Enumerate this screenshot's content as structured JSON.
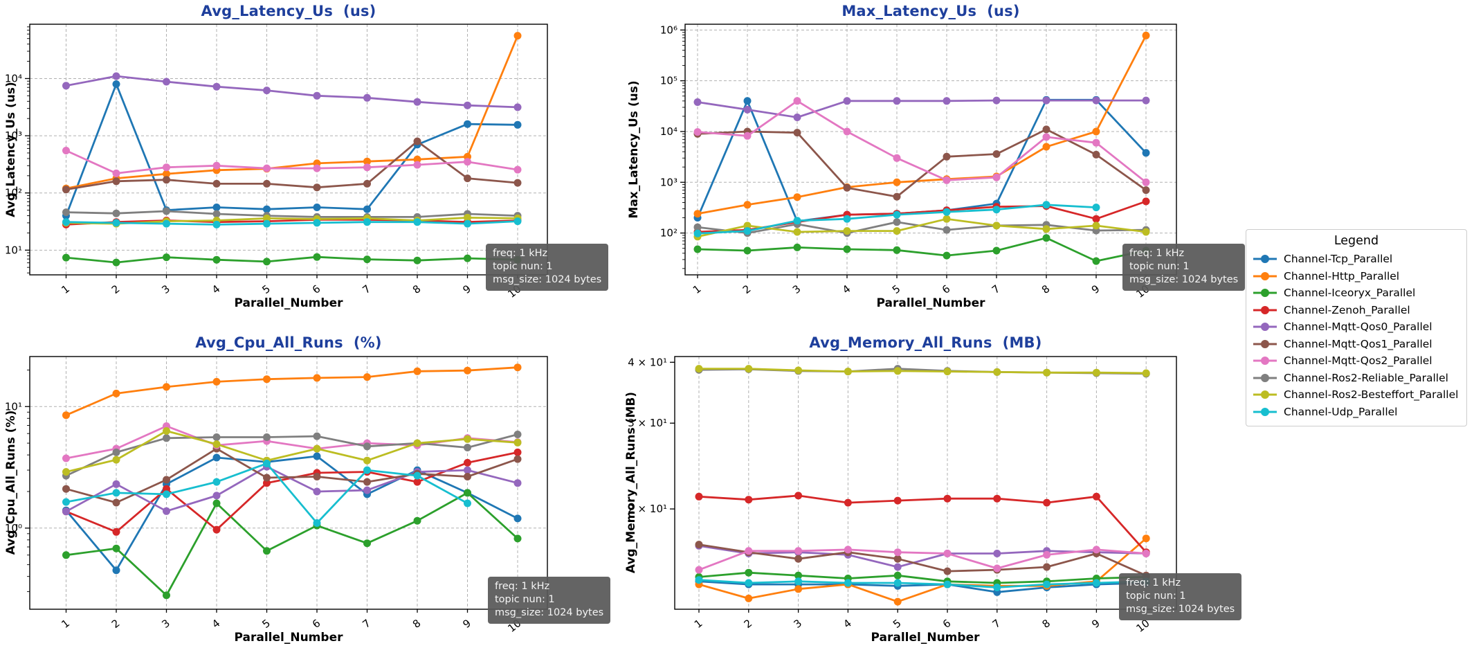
{
  "figure": {
    "background": "#ffffff",
    "title_color": "#1e3f9c",
    "grid_color": "#b0b0b0"
  },
  "annotation": {
    "lines": [
      "freq: 1 kHz",
      "topic nun: 1",
      "msg_size: 1024 bytes"
    ]
  },
  "legend": {
    "title": "Legend",
    "position": "right",
    "entries": [
      {
        "label": "Channel-Tcp_Parallel",
        "color": "#1f77b4"
      },
      {
        "label": "Channel-Http_Parallel",
        "color": "#ff7f0e"
      },
      {
        "label": "Channel-Iceoryx_Parallel",
        "color": "#2ca02c"
      },
      {
        "label": "Channel-Zenoh_Parallel",
        "color": "#d62728"
      },
      {
        "label": "Channel-Mqtt-Qos0_Parallel",
        "color": "#9467bd"
      },
      {
        "label": "Channel-Mqtt-Qos1_Parallel",
        "color": "#8c564b"
      },
      {
        "label": "Channel-Mqtt-Qos2_Parallel",
        "color": "#e377c2"
      },
      {
        "label": "Channel-Ros2-Reliable_Parallel",
        "color": "#7f7f7f"
      },
      {
        "label": "Channel-Ros2-Besteffort_Parallel",
        "color": "#bcbd22"
      },
      {
        "label": "Channel-Udp_Parallel",
        "color": "#17becf"
      }
    ]
  },
  "chart_data": [
    {
      "type": "line",
      "title": "Avg_Latency_Us  (us)",
      "xlabel": "Parallel_Number",
      "ylabel": "Avg_Latency_Us (us)",
      "yscale": "log",
      "grid": "both",
      "ylim": [
        3.7,
        89000
      ],
      "yticks": [
        {
          "label": "10⁴",
          "value": 10000
        },
        {
          "label": "10³",
          "value": 1000
        },
        {
          "label": "10²",
          "value": 100
        },
        {
          "label": "10¹",
          "value": 10
        }
      ],
      "x": [
        1,
        2,
        3,
        4,
        5,
        6,
        7,
        8,
        9,
        10
      ],
      "series": [
        {
          "name": "Channel-Tcp_Parallel",
          "color": "#1f77b4",
          "values": [
            40,
            8000,
            50,
            56,
            52,
            56,
            52,
            700,
            1600,
            1550
          ]
        },
        {
          "name": "Channel-Http_Parallel",
          "color": "#ff7f0e",
          "values": [
            120,
            180,
            215,
            250,
            265,
            330,
            355,
            385,
            430,
            56000
          ]
        },
        {
          "name": "Channel-Iceoryx_Parallel",
          "color": "#2ca02c",
          "values": [
            7.4,
            6.1,
            7.5,
            6.8,
            6.3,
            7.6,
            6.9,
            6.6,
            7.2,
            6.8
          ]
        },
        {
          "name": "Channel-Zenoh_Parallel",
          "color": "#d62728",
          "values": [
            28,
            31,
            33,
            31,
            32,
            34,
            34,
            33,
            31,
            33
          ]
        },
        {
          "name": "Channel-Mqtt-Qos0_Parallel",
          "color": "#9467bd",
          "values": [
            7500,
            11000,
            8800,
            7200,
            6200,
            5000,
            4600,
            3900,
            3400,
            3150
          ]
        },
        {
          "name": "Channel-Mqtt-Qos1_Parallel",
          "color": "#8c564b",
          "values": [
            115,
            160,
            170,
            145,
            145,
            125,
            145,
            800,
            180,
            150
          ]
        },
        {
          "name": "Channel-Mqtt-Qos2_Parallel",
          "color": "#e377c2",
          "values": [
            550,
            220,
            280,
            300,
            270,
            270,
            280,
            310,
            350,
            255
          ]
        },
        {
          "name": "Channel-Ros2-Reliable_Parallel",
          "color": "#7f7f7f",
          "values": [
            46,
            44,
            48,
            43,
            40,
            38,
            38,
            38,
            43,
            40
          ]
        },
        {
          "name": "Channel-Ros2-Besteffort_Parallel",
          "color": "#bcbd22",
          "values": [
            30,
            29,
            32,
            33,
            36,
            35,
            36,
            33,
            37,
            36
          ]
        },
        {
          "name": "Channel-Udp_Parallel",
          "color": "#17becf",
          "values": [
            31,
            30,
            29,
            28,
            29,
            30,
            31,
            31,
            29,
            32
          ]
        }
      ]
    },
    {
      "type": "line",
      "title": "Max_Latency_Us  (us)",
      "xlabel": "Parallel_Number",
      "ylabel": "Max_Latency_Us (us)",
      "yscale": "log",
      "grid": "both",
      "ylim": [
        15,
        1300000
      ],
      "yticks": [
        {
          "label": "10⁶",
          "value": 1000000
        },
        {
          "label": "10⁵",
          "value": 100000
        },
        {
          "label": "10⁴",
          "value": 10000
        },
        {
          "label": "10³",
          "value": 1000
        },
        {
          "label": "10²",
          "value": 100
        }
      ],
      "x": [
        1,
        2,
        3,
        4,
        5,
        6,
        7,
        8,
        9,
        10
      ],
      "series": [
        {
          "name": "Channel-Tcp_Parallel",
          "color": "#1f77b4",
          "values": [
            200,
            40000,
            170,
            230,
            240,
            280,
            380,
            42000,
            42000,
            3800
          ]
        },
        {
          "name": "Channel-Http_Parallel",
          "color": "#ff7f0e",
          "values": [
            240,
            360,
            510,
            800,
            1000,
            1150,
            1300,
            5000,
            10000,
            780000
          ]
        },
        {
          "name": "Channel-Iceoryx_Parallel",
          "color": "#2ca02c",
          "values": [
            48,
            45,
            52,
            48,
            46,
            36,
            45,
            80,
            28,
            45
          ]
        },
        {
          "name": "Channel-Zenoh_Parallel",
          "color": "#d62728",
          "values": [
            105,
            115,
            165,
            230,
            240,
            280,
            330,
            340,
            190,
            420
          ]
        },
        {
          "name": "Channel-Mqtt-Qos0_Parallel",
          "color": "#9467bd",
          "values": [
            38000,
            27000,
            19000,
            40000,
            40000,
            40000,
            41000,
            41000,
            41000,
            41000
          ]
        },
        {
          "name": "Channel-Mqtt-Qos1_Parallel",
          "color": "#8c564b",
          "values": [
            9000,
            10000,
            9500,
            780,
            520,
            3200,
            3600,
            11000,
            3500,
            700
          ]
        },
        {
          "name": "Channel-Mqtt-Qos2_Parallel",
          "color": "#e377c2",
          "values": [
            9800,
            8200,
            40000,
            10000,
            3000,
            1100,
            1250,
            7800,
            6000,
            1000
          ]
        },
        {
          "name": "Channel-Ros2-Reliable_Parallel",
          "color": "#7f7f7f",
          "values": [
            130,
            100,
            150,
            100,
            165,
            115,
            140,
            145,
            112,
            115
          ]
        },
        {
          "name": "Channel-Ros2-Besteffort_Parallel",
          "color": "#bcbd22",
          "values": [
            85,
            140,
            105,
            110,
            110,
            190,
            140,
            120,
            140,
            105
          ]
        },
        {
          "name": "Channel-Udp_Parallel",
          "color": "#17becf",
          "values": [
            98,
            110,
            175,
            190,
            230,
            260,
            290,
            360,
            320,
            null
          ]
        }
      ]
    },
    {
      "type": "line",
      "title": "Avg_Cpu_All_Runs  (%)",
      "xlabel": "Parallel_Number",
      "ylabel": "Avg_Cpu_All_Runs (%)",
      "yscale": "log",
      "grid": "both",
      "ylim": [
        0.215,
        25.8
      ],
      "yticks": [
        {
          "label": "10¹",
          "value": 10
        },
        {
          "label": "10⁰",
          "value": 1
        }
      ],
      "x": [
        1,
        2,
        3,
        4,
        5,
        6,
        7,
        8,
        9,
        10
      ],
      "series": [
        {
          "name": "Channel-Tcp_Parallel",
          "color": "#1f77b4",
          "values": [
            1.4,
            0.45,
            2.3,
            3.8,
            3.5,
            3.9,
            1.9,
            3.0,
            1.95,
            1.2
          ]
        },
        {
          "name": "Channel-Http_Parallel",
          "color": "#ff7f0e",
          "values": [
            8.5,
            12.8,
            14.5,
            16.0,
            16.8,
            17.2,
            17.5,
            19.5,
            19.8,
            21.0
          ]
        },
        {
          "name": "Channel-Iceoryx_Parallel",
          "color": "#2ca02c",
          "values": [
            0.6,
            0.68,
            0.28,
            1.6,
            0.65,
            1.05,
            0.75,
            1.15,
            1.95,
            0.82
          ]
        },
        {
          "name": "Channel-Zenoh_Parallel",
          "color": "#d62728",
          "values": [
            1.37,
            0.93,
            2.1,
            0.97,
            2.35,
            2.85,
            2.9,
            2.4,
            3.45,
            4.2
          ]
        },
        {
          "name": "Channel-Mqtt-Qos0_Parallel",
          "color": "#9467bd",
          "values": [
            1.37,
            2.3,
            1.38,
            1.85,
            3.2,
            2.0,
            2.05,
            2.9,
            3.0,
            2.35
          ]
        },
        {
          "name": "Channel-Mqtt-Qos1_Parallel",
          "color": "#8c564b",
          "values": [
            2.1,
            1.62,
            2.5,
            4.5,
            2.6,
            2.65,
            2.4,
            2.8,
            2.65,
            3.7
          ]
        },
        {
          "name": "Channel-Mqtt-Qos2_Parallel",
          "color": "#e377c2",
          "values": [
            3.75,
            4.5,
            6.9,
            4.8,
            5.2,
            4.5,
            5.0,
            4.8,
            5.5,
            5.1
          ]
        },
        {
          "name": "Channel-Ros2-Reliable_Parallel",
          "color": "#7f7f7f",
          "values": [
            2.7,
            4.2,
            5.5,
            5.6,
            5.6,
            5.7,
            4.7,
            5.0,
            4.6,
            5.9
          ]
        },
        {
          "name": "Channel-Ros2-Besteffort_Parallel",
          "color": "#bcbd22",
          "values": [
            2.9,
            3.65,
            6.3,
            4.9,
            3.6,
            4.5,
            3.6,
            5.0,
            5.4,
            5.05
          ]
        },
        {
          "name": "Channel-Udp_Parallel",
          "color": "#17becf",
          "values": [
            1.64,
            1.95,
            1.9,
            2.4,
            3.4,
            1.1,
            3.0,
            2.7,
            1.6,
            null
          ]
        }
      ]
    },
    {
      "type": "line",
      "title": "Avg_Memory_All_Runs  (MB)",
      "xlabel": "Parallel_Number",
      "ylabel": "Avg_Memory_All_Runs (MB)",
      "yscale": "log",
      "grid": "x",
      "ylim": [
        12.45,
        41.1
      ],
      "yticks": [
        {
          "label": "4 × 10¹",
          "value": 40
        },
        {
          "label": "3 × 10¹",
          "value": 30
        },
        {
          "label": "2 × 10¹",
          "value": 20
        }
      ],
      "x": [
        1,
        2,
        3,
        4,
        5,
        6,
        7,
        8,
        9,
        10
      ],
      "series": [
        {
          "name": "Channel-Tcp_Parallel",
          "color": "#1f77b4",
          "values": [
            14.2,
            14.0,
            14.0,
            14.0,
            13.9,
            14.0,
            13.5,
            13.8,
            14.0,
            14.1
          ]
        },
        {
          "name": "Channel-Http_Parallel",
          "color": "#ff7f0e",
          "values": [
            14.0,
            13.1,
            13.7,
            14.0,
            12.9,
            14.0,
            13.9,
            13.9,
            14.2,
            17.4
          ]
        },
        {
          "name": "Channel-Iceoryx_Parallel",
          "color": "#2ca02c",
          "values": [
            14.5,
            14.8,
            14.6,
            14.4,
            14.6,
            14.2,
            14.1,
            14.2,
            14.4,
            14.5
          ]
        },
        {
          "name": "Channel-Zenoh_Parallel",
          "color": "#d62728",
          "values": [
            21.2,
            20.9,
            21.3,
            20.6,
            20.8,
            21.0,
            21.0,
            20.6,
            21.2,
            16.3
          ]
        },
        {
          "name": "Channel-Mqtt-Qos0_Parallel",
          "color": "#9467bd",
          "values": [
            16.8,
            16.2,
            16.3,
            16.1,
            15.2,
            16.2,
            16.2,
            16.4,
            16.3,
            16.2
          ]
        },
        {
          "name": "Channel-Mqtt-Qos1_Parallel",
          "color": "#8c564b",
          "values": [
            16.9,
            16.3,
            15.8,
            16.3,
            15.8,
            14.9,
            15.0,
            15.2,
            16.2,
            14.6
          ]
        },
        {
          "name": "Channel-Mqtt-Qos2_Parallel",
          "color": "#e377c2",
          "values": [
            15.0,
            16.4,
            16.4,
            16.5,
            16.3,
            16.2,
            15.1,
            16.1,
            16.5,
            16.2
          ]
        },
        {
          "name": "Channel-Ros2-Reliable_Parallel",
          "color": "#7f7f7f",
          "values": [
            38.6,
            38.7,
            38.4,
            38.3,
            38.8,
            38.4,
            38.2,
            38.1,
            38.0,
            37.9
          ]
        },
        {
          "name": "Channel-Ros2-Besteffort_Parallel",
          "color": "#bcbd22",
          "values": [
            38.8,
            38.8,
            38.5,
            38.3,
            38.4,
            38.3,
            38.2,
            38.1,
            38.1,
            38.0
          ]
        },
        {
          "name": "Channel-Udp_Parallel",
          "color": "#17becf",
          "values": [
            14.3,
            14.1,
            14.2,
            14.1,
            14.1,
            14.0,
            13.8,
            14.0,
            14.1,
            14.2
          ]
        }
      ]
    }
  ]
}
